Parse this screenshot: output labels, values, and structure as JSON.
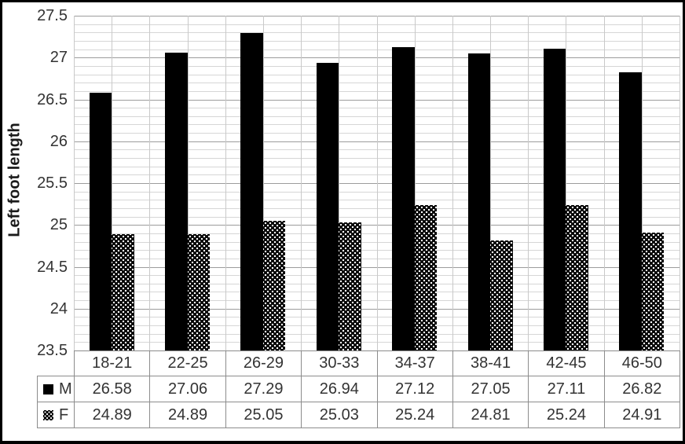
{
  "chart_data": {
    "type": "bar",
    "title": "",
    "xlabel": "",
    "ylabel": "Left foot length",
    "categories": [
      "18-21",
      "22-25",
      "26-29",
      "30-33",
      "34-37",
      "38-41",
      "42-45",
      "46-50"
    ],
    "series": [
      {
        "name": "M",
        "style": "solid-black",
        "values": [
          26.58,
          27.06,
          27.29,
          26.94,
          27.12,
          27.05,
          27.11,
          26.82
        ]
      },
      {
        "name": "F",
        "style": "black-white-dot-pattern",
        "values": [
          24.89,
          24.89,
          25.05,
          25.03,
          25.24,
          24.81,
          25.24,
          24.91
        ]
      }
    ],
    "ylim": [
      23.5,
      27.5
    ],
    "ytick_labels": [
      "27.5",
      "27",
      "26.5",
      "26",
      "25.5",
      "25",
      "24.5",
      "24",
      "23.5"
    ],
    "major_grid_step": 0.5,
    "minor_grid_step": 0.1,
    "grid": "horizontal minor+major, vertical half-category",
    "legend_position": "data-table-left-keys",
    "value_decimals": 2
  },
  "colors": {
    "bar_fill": "#000000",
    "grid_minor": "#d6d6d6",
    "grid_major": "#9c9c9c",
    "grid_vertical": "#c9c9c9",
    "table_border": "#8c8c8c",
    "text": "#333333",
    "frame": "#000000",
    "background": "#ffffff"
  }
}
